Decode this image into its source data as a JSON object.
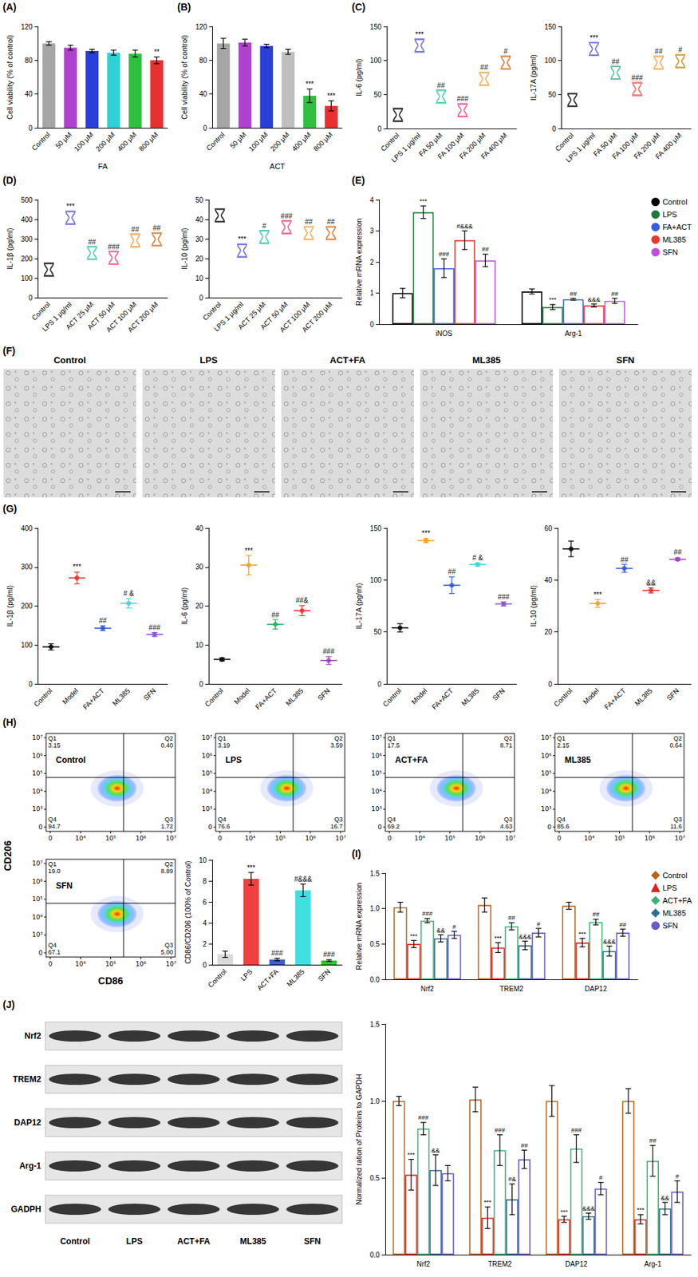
{
  "chart_data": [
    {
      "panel": "(A)",
      "type": "bar",
      "categories": [
        "Control",
        "50 μM",
        "100 μM",
        "200 μM",
        "400 μM",
        "800 μM"
      ],
      "x_label": "FA",
      "y_label": "Cell viability (% of control)",
      "values": [
        100,
        95,
        91,
        89,
        88,
        80
      ],
      "errors": [
        2,
        3,
        2,
        3,
        4,
        4
      ],
      "colors": [
        "#a6a6a6",
        "#b040d0",
        "#2a3fd8",
        "#30d0d8",
        "#30c040",
        "#e83030"
      ],
      "marks": [
        null,
        null,
        null,
        null,
        null,
        "**"
      ],
      "ylim": [
        0,
        120
      ],
      "yticks": [
        0,
        40,
        80,
        120
      ]
    },
    {
      "panel": "(B)",
      "type": "bar",
      "categories": [
        "Control",
        "50 μM",
        "100 μM",
        "200 μM",
        "400 μM",
        "800 μM"
      ],
      "x_label": "ACT",
      "y_label": "Cell viability (% of control)",
      "values": [
        100,
        101,
        97,
        90,
        38,
        26
      ],
      "errors": [
        6,
        4,
        2,
        3,
        8,
        6
      ],
      "colors": [
        "#a6a6a6",
        "#b040d0",
        "#2a3fd8",
        "#bfbfbf",
        "#30c040",
        "#e83030"
      ],
      "marks": [
        null,
        null,
        null,
        null,
        "***",
        "***"
      ],
      "ylim": [
        0,
        120
      ],
      "yticks": [
        0,
        40,
        80,
        120
      ]
    },
    {
      "panel": "(C)",
      "type": "scatter",
      "marker": "violin",
      "categories": [
        "Control",
        "LPS 1 μg/ml",
        "FA 50 μM",
        "FA 100 μM",
        "FA 200 μM",
        "FA 400 μM"
      ],
      "y_label": "IL-6 (pg/ml)",
      "values": [
        20,
        122,
        47,
        27,
        73,
        97
      ],
      "colors": [
        "#000000",
        "#5b5bd6",
        "#2ec4a0",
        "#e8467c",
        "#f0a040",
        "#d2691e"
      ],
      "marks": [
        null,
        "***",
        "##",
        "###",
        "##",
        "#"
      ],
      "ylim": [
        0,
        150
      ],
      "yticks": [
        0,
        50,
        100,
        150
      ]
    },
    {
      "type": "scatter",
      "marker": "violin",
      "categories": [
        "Control",
        "LPS 1 μg/ml",
        "FA 50 μM",
        "FA 100 μM",
        "FA 200 μM",
        "FA 400 μM"
      ],
      "y_label": "IL-17A (pg/ml)",
      "values": [
        42,
        117,
        82,
        58,
        97,
        99
      ],
      "colors": [
        "#000000",
        "#5b5bd6",
        "#3cb38a",
        "#ff5050",
        "#f0a040",
        "#c8860a"
      ],
      "marks": [
        null,
        "***",
        "##",
        "###",
        "##",
        "#"
      ],
      "ylim": [
        0,
        150
      ],
      "yticks": [
        0,
        50,
        100,
        150
      ]
    },
    {
      "panel": "(D)",
      "type": "scatter",
      "marker": "violin",
      "categories": [
        "Control",
        "LPS 1 μg/ml",
        "ACT 25 μM",
        "ACT 50 μM",
        "ACT 100 μM",
        "ACT 200 μM"
      ],
      "y_label": "IL-1β (pg/ml)",
      "values": [
        143,
        408,
        228,
        203,
        292,
        298
      ],
      "colors": [
        "#000000",
        "#5b5bd6",
        "#2ec4a0",
        "#e8467c",
        "#f0a040",
        "#d2691e"
      ],
      "marks": [
        null,
        "***",
        "##",
        "###",
        "##",
        "##"
      ],
      "ylim": [
        0,
        500
      ],
      "yticks": [
        0,
        100,
        200,
        300,
        400,
        500
      ]
    },
    {
      "type": "scatter",
      "marker": "violin",
      "categories": [
        "Control",
        "LPS 1 μg/ml",
        "ACT 25 μM",
        "ACT 50 μM",
        "ACT 100 μM",
        "ACT 200 μM"
      ],
      "y_label": "IL-10 (pg/ml)",
      "values": [
        42,
        24,
        31,
        36,
        33,
        33
      ],
      "colors": [
        "#000000",
        "#5b5bd6",
        "#2ec4a0",
        "#e8467c",
        "#f0a040",
        "#d2691e"
      ],
      "marks": [
        null,
        "***",
        "#",
        "###",
        "##",
        "##"
      ],
      "ylim": [
        0,
        50
      ],
      "yticks": [
        0,
        10,
        20,
        30,
        40,
        50
      ]
    },
    {
      "panel": "(E)",
      "type": "bar",
      "categories": [
        "iNOS",
        "Arg-1"
      ],
      "y_label": "Relative mRNA expression",
      "legend": "right",
      "series": [
        {
          "name": "Control",
          "color": "#000000",
          "marker": "circle",
          "values": [
            1.0,
            1.05
          ],
          "errors": [
            0.15,
            0.08
          ],
          "marks": [
            null,
            null
          ]
        },
        {
          "name": "LPS",
          "color": "#1e7b3c",
          "marker": "circle",
          "values": [
            3.6,
            0.55
          ],
          "errors": [
            0.2,
            0.08
          ],
          "marks": [
            "***",
            "***"
          ]
        },
        {
          "name": "FA+ACT",
          "color": "#3b5ee6",
          "marker": "circle",
          "values": [
            1.8,
            0.8
          ],
          "errors": [
            0.3,
            0.03
          ],
          "marks": [
            "###",
            "##"
          ]
        },
        {
          "name": "ML385",
          "color": "#e8392e",
          "marker": "circle",
          "values": [
            2.7,
            0.6
          ],
          "errors": [
            0.3,
            0.05
          ],
          "marks": [
            "#&&&",
            "&&&"
          ]
        },
        {
          "name": "SFN",
          "color": "#c04fe0",
          "marker": "circle",
          "values": [
            2.05,
            0.75
          ],
          "errors": [
            0.2,
            0.08
          ],
          "marks": [
            "##",
            "##"
          ]
        }
      ],
      "ylim": [
        0,
        4
      ],
      "yticks": [
        0,
        1,
        2,
        3,
        4
      ]
    },
    {
      "panel": "(G)",
      "type": "scatter",
      "marker": "circle",
      "categories": [
        "Control",
        "Model",
        "FA+ACT",
        "ML385",
        "SFN"
      ],
      "y_label": "IL-1β (pg/ml)",
      "values": [
        95,
        272,
        143,
        207,
        127
      ],
      "errors": [
        8,
        15,
        6,
        12,
        5
      ],
      "colors": [
        "#000000",
        "#e0302a",
        "#2f55d4",
        "#3ad6d6",
        "#8a4fc8"
      ],
      "marks": [
        null,
        "***",
        "##",
        "# &",
        "###"
      ],
      "ylim": [
        0,
        400
      ],
      "yticks": [
        0,
        100,
        200,
        300,
        400
      ]
    },
    {
      "type": "scatter",
      "marker": "circle",
      "categories": [
        "Control",
        "Model",
        "FA+ACT",
        "ML385",
        "SFN"
      ],
      "y_label": "IL-6 (pg/ml)",
      "values": [
        6.3,
        30.5,
        15.3,
        18.8,
        6
      ],
      "errors": [
        0.4,
        2.5,
        1.2,
        1.3,
        1
      ],
      "colors": [
        "#000000",
        "#f0a020",
        "#20b060",
        "#e0302a",
        "#a040c0"
      ],
      "marks": [
        null,
        "***",
        "##",
        "##&",
        "###"
      ],
      "ylim": [
        0,
        40
      ],
      "yticks": [
        0,
        10,
        20,
        30,
        40
      ]
    },
    {
      "type": "scatter",
      "marker": "circle",
      "categories": [
        "Control",
        "Model",
        "FA+ACT",
        "ML385",
        "SFN"
      ],
      "y_label": "IL-17A (pg/ml)",
      "values": [
        54,
        138,
        95,
        115,
        77
      ],
      "errors": [
        4,
        2,
        8,
        1.5,
        2
      ],
      "colors": [
        "#000000",
        "#f0a020",
        "#2f55d4",
        "#3ad6d6",
        "#8a4fc8"
      ],
      "marks": [
        null,
        "***",
        "##",
        "# &",
        "###"
      ],
      "ylim": [
        0,
        150
      ],
      "yticks": [
        0,
        50,
        100,
        150
      ]
    },
    {
      "type": "scatter",
      "marker": "circle",
      "categories": [
        "Control",
        "Model",
        "FA+ACT",
        "ML385",
        "SFN"
      ],
      "y_label": "IL-10 (pg/ml)",
      "values": [
        52,
        31,
        44.5,
        36,
        48
      ],
      "errors": [
        3,
        1.5,
        1.5,
        1,
        0.5
      ],
      "colors": [
        "#000000",
        "#f0a020",
        "#2f55d4",
        "#e0302a",
        "#a040c0"
      ],
      "marks": [
        null,
        "***",
        "##",
        "&&",
        "##"
      ],
      "ylim": [
        0,
        60
      ],
      "yticks": [
        0,
        20,
        40,
        60
      ]
    },
    {
      "type": "bar",
      "categories": [
        "Control",
        "LPS",
        "ACT+FA",
        "ML385",
        "SFN"
      ],
      "y_label": "CD86/CD206 (100% of Control)",
      "values": [
        1.0,
        8.2,
        0.5,
        7.1,
        0.4
      ],
      "errors": [
        0.3,
        0.6,
        0.12,
        0.6,
        0.08
      ],
      "colors": [
        "#d9d9d9",
        "#f04040",
        "#3a5fcd",
        "#40e0e0",
        "#30c030"
      ],
      "marks": [
        null,
        "***",
        "###",
        "#&&&",
        "###"
      ],
      "ylim": [
        0,
        10
      ],
      "yticks": [
        0,
        2,
        4,
        6,
        8,
        10
      ]
    },
    {
      "panel": "(I)",
      "type": "bar",
      "categories": [
        "Nrf2",
        "TREM2",
        "DAP12"
      ],
      "y_label": "Relative mRNA expression",
      "legend": "right",
      "series": [
        {
          "name": "Control",
          "color": "#b8651d",
          "marker": "diamond",
          "values": [
            1.02,
            1.05,
            1.04
          ],
          "errors": [
            0.07,
            0.1,
            0.05
          ],
          "marks": [
            null,
            null,
            null
          ]
        },
        {
          "name": "LPS",
          "color": "#e02020",
          "marker": "triangle",
          "values": [
            0.5,
            0.45,
            0.52
          ],
          "errors": [
            0.05,
            0.07,
            0.06
          ],
          "marks": [
            "***",
            "***",
            "***"
          ]
        },
        {
          "name": "ACT+FA",
          "color": "#3cb371",
          "marker": "diamond",
          "values": [
            0.83,
            0.75,
            0.81
          ],
          "errors": [
            0.03,
            0.05,
            0.04
          ],
          "marks": [
            "###",
            "##",
            "##"
          ]
        },
        {
          "name": "ML385",
          "color": "#2f6f8f",
          "marker": "diamond",
          "values": [
            0.58,
            0.48,
            0.4
          ],
          "errors": [
            0.05,
            0.06,
            0.07
          ],
          "marks": [
            "&&",
            "&&&",
            "&&&"
          ]
        },
        {
          "name": "SFN",
          "color": "#6a5acd",
          "marker": "circle",
          "values": [
            0.63,
            0.66,
            0.66
          ],
          "errors": [
            0.05,
            0.06,
            0.05
          ],
          "marks": [
            "#",
            "#",
            "##"
          ]
        }
      ],
      "ylim": [
        0,
        1.5
      ],
      "yticks": [
        {
          "value": 0,
          "label": "0.0"
        },
        0.5,
        {
          "value": 1,
          "label": "1.0"
        },
        1.5
      ]
    },
    {
      "type": "bar",
      "categories": [
        "Nrf2",
        "TREM2",
        "DAP12",
        "Arg-1"
      ],
      "y_label": "Normalized ration of Proteins to GAPDH",
      "series": [
        {
          "color": "#b8651d",
          "values": [
            1.0,
            1.01,
            1.0,
            1.0
          ],
          "errors": [
            0.03,
            0.08,
            0.1,
            0.08
          ],
          "marks": [
            null,
            null,
            null,
            null
          ]
        },
        {
          "color": "#e02020",
          "values": [
            0.52,
            0.24,
            0.23,
            0.23
          ],
          "errors": [
            0.1,
            0.07,
            0.02,
            0.03
          ],
          "marks": [
            "***",
            "***",
            "***",
            "***"
          ]
        },
        {
          "color": "#3cb371",
          "values": [
            0.82,
            0.68,
            0.69,
            0.61
          ],
          "errors": [
            0.04,
            0.1,
            0.09,
            0.1
          ],
          "marks": [
            "###",
            "###",
            "###",
            "##"
          ]
        },
        {
          "color": "#2f6f8f",
          "values": [
            0.55,
            0.36,
            0.25,
            0.3
          ],
          "errors": [
            0.1,
            0.1,
            0.02,
            0.04
          ],
          "marks": [
            "&&",
            "#&",
            "&&&",
            "&&"
          ]
        },
        {
          "color": "#6a5acd",
          "values": [
            0.53,
            0.62,
            0.43,
            0.41
          ],
          "errors": [
            0.05,
            0.06,
            0.04,
            0.07
          ],
          "marks": [
            null,
            "##",
            "#",
            "#"
          ]
        }
      ],
      "ylim": [
        0,
        1.5
      ],
      "yticks": [
        {
          "value": 0,
          "label": "0.0"
        },
        0.5,
        {
          "value": 1,
          "label": "1.0"
        },
        1.5
      ]
    }
  ],
  "micrographs": {
    "panel": "(F)",
    "labels": [
      "Control",
      "LPS",
      "ACT+FA",
      "ML385",
      "SFN"
    ]
  },
  "flow_cytometry": {
    "panel": "(H)",
    "x_label": "CD86",
    "y_label": "CD206",
    "x_ticks": [
      "0",
      "10⁴",
      "10⁵",
      "10⁶",
      "10⁷"
    ],
    "y_ticks": [
      "0",
      "10³",
      "10⁴",
      "10⁵",
      "10⁶",
      "10⁷"
    ],
    "plots": [
      {
        "title": "Control",
        "quadrants": [
          {
            "name": "Q1",
            "value": "3.15"
          },
          {
            "name": "Q2",
            "value": "0.40"
          },
          {
            "name": "Q3",
            "value": "1.72"
          },
          {
            "name": "Q4",
            "value": "94.7"
          }
        ]
      },
      {
        "title": "LPS",
        "quadrants": [
          {
            "name": "Q1",
            "value": "3.19"
          },
          {
            "name": "Q2",
            "value": "3.59"
          },
          {
            "name": "Q3",
            "value": "16.7"
          },
          {
            "name": "Q4",
            "value": "76.6"
          }
        ]
      },
      {
        "title": "ACT+FA",
        "quadrants": [
          {
            "name": "Q1",
            "value": "17.5"
          },
          {
            "name": "Q2",
            "value": "8.71"
          },
          {
            "name": "Q3",
            "value": "4.63"
          },
          {
            "name": "Q4",
            "value": "69.2"
          }
        ]
      },
      {
        "title": "ML385",
        "quadrants": [
          {
            "name": "Q1",
            "value": "2.15"
          },
          {
            "name": "Q2",
            "value": "0.64"
          },
          {
            "name": "Q3",
            "value": "11.6"
          },
          {
            "name": "Q4",
            "value": "85.6"
          }
        ]
      },
      {
        "title": "SFN",
        "quadrants": [
          {
            "name": "Q1",
            "value": "19.0"
          },
          {
            "name": "Q2",
            "value": "8.89"
          },
          {
            "name": "Q3",
            "value": "5.00"
          },
          {
            "name": "Q4",
            "value": "67.1"
          }
        ]
      }
    ]
  },
  "western_blot": {
    "panel": "(J)",
    "proteins": [
      "Nrf2",
      "TREM2",
      "DAP12",
      "Arg-1",
      "GADPH"
    ],
    "lanes": [
      "Control",
      "LPS",
      "ACT+FA",
      "ML385",
      "SFN"
    ]
  }
}
